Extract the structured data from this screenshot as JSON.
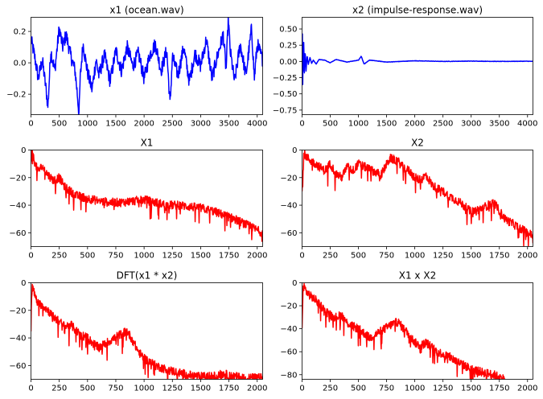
{
  "chart_data": [
    {
      "type": "line",
      "title": "x1 (ocean.wav)",
      "color": "#0000ff",
      "xlim": [
        0,
        4096
      ],
      "ylim": [
        -0.33,
        0.29
      ],
      "xticks": [
        0,
        500,
        1000,
        1500,
        2000,
        2500,
        3000,
        3500,
        4000
      ],
      "yticks": [
        -0.2,
        0.0,
        0.2
      ],
      "ytick_labels": [
        "−0.2",
        "0.0",
        "0.2"
      ],
      "series": [
        {
          "x": [
            0,
            60,
            130,
            200,
            270,
            300,
            350,
            420,
            500,
            560,
            620,
            700,
            780,
            820,
            850,
            870,
            920,
            1000,
            1080,
            1150,
            1200,
            1300,
            1400,
            1500,
            1600,
            1700,
            1800,
            1900,
            2000,
            2100,
            2200,
            2300,
            2400,
            2460,
            2500,
            2600,
            2700,
            2800,
            2900,
            3000,
            3100,
            3200,
            3300,
            3400,
            3450,
            3490,
            3520,
            3600,
            3700,
            3800,
            3900,
            3950,
            4000,
            4096
          ],
          "values": [
            0.15,
            0.05,
            -0.1,
            0.02,
            -0.18,
            -0.28,
            0.08,
            -0.05,
            0.22,
            0.1,
            0.18,
            0.05,
            -0.05,
            -0.2,
            -0.33,
            -0.1,
            0.12,
            -0.06,
            -0.17,
            0.02,
            -0.08,
            0.05,
            -0.12,
            0.08,
            -0.05,
            0.1,
            -0.02,
            0.06,
            -0.1,
            0.05,
            0.12,
            -0.05,
            0.08,
            -0.27,
            0.04,
            -0.08,
            0.1,
            -0.12,
            0.06,
            -0.02,
            0.15,
            -0.1,
            0.05,
            0.18,
            -0.05,
            0.29,
            0.08,
            -0.12,
            0.12,
            -0.08,
            0.22,
            -0.1,
            0.12,
            0.02
          ]
        }
      ]
    },
    {
      "type": "line",
      "title": "x2 (impulse-response.wav)",
      "color": "#0000ff",
      "xlim": [
        0,
        4096
      ],
      "ylim": [
        -0.82,
        0.68
      ],
      "xticks": [
        0,
        500,
        1000,
        1500,
        2000,
        2500,
        3000,
        3500,
        4000
      ],
      "yticks": [
        -0.75,
        -0.5,
        -0.25,
        0.0,
        0.25,
        0.5
      ],
      "ytick_labels": [
        "−0.75",
        "−0.50",
        "−0.25",
        "0.00",
        "0.25",
        "0.50"
      ],
      "series": [
        {
          "x": [
            0,
            5,
            10,
            15,
            20,
            30,
            40,
            55,
            70,
            90,
            110,
            140,
            170,
            200,
            250,
            300,
            400,
            500,
            600,
            800,
            1000,
            1050,
            1100,
            1200,
            1500,
            2000,
            2500,
            3000,
            3500,
            4000,
            4096
          ],
          "values": [
            0.0,
            0.68,
            -0.82,
            0.55,
            -0.4,
            0.35,
            -0.2,
            0.18,
            -0.15,
            0.1,
            -0.05,
            0.06,
            -0.03,
            0.02,
            -0.04,
            0.03,
            0.02,
            -0.02,
            0.03,
            -0.01,
            0.02,
            0.08,
            -0.04,
            0.02,
            -0.01,
            0.01,
            0.0,
            0.005,
            0.0,
            0.003,
            0.0
          ]
        }
      ]
    },
    {
      "type": "line",
      "title": "X1",
      "color": "#ff0000",
      "xlim": [
        0,
        2048
      ],
      "ylim": [
        -70,
        0
      ],
      "xticks": [
        0,
        250,
        500,
        750,
        1000,
        1250,
        1500,
        1750,
        2000
      ],
      "yticks": [
        -60,
        -40,
        -20,
        0
      ],
      "ytick_labels": [
        "−60",
        "−40",
        "−20",
        "0"
      ],
      "series": [
        {
          "x": [
            0,
            10,
            30,
            60,
            100,
            150,
            200,
            250,
            300,
            350,
            400,
            500,
            600,
            700,
            800,
            900,
            1000,
            1100,
            1200,
            1300,
            1400,
            1500,
            1600,
            1700,
            1800,
            1900,
            2000,
            2048
          ],
          "values": [
            -12,
            -2,
            -8,
            -15,
            -12,
            -18,
            -22,
            -20,
            -27,
            -30,
            -33,
            -35,
            -37,
            -38,
            -38,
            -37,
            -36,
            -38,
            -40,
            -40,
            -41,
            -42,
            -44,
            -47,
            -50,
            -54,
            -58,
            -60
          ]
        }
      ]
    },
    {
      "type": "line",
      "title": "X2",
      "color": "#ff0000",
      "xlim": [
        0,
        2048
      ],
      "ylim": [
        -70,
        0
      ],
      "xticks": [
        0,
        250,
        500,
        750,
        1000,
        1250,
        1500,
        1750,
        2000
      ],
      "yticks": [
        -60,
        -40,
        -20,
        0
      ],
      "ytick_labels": [
        "−60",
        "−40",
        "−20",
        "0"
      ],
      "series": [
        {
          "x": [
            0,
            15,
            40,
            80,
            120,
            150,
            200,
            250,
            300,
            350,
            400,
            450,
            500,
            600,
            700,
            780,
            850,
            900,
            950,
            1000,
            1050,
            1100,
            1150,
            1200,
            1250,
            1300,
            1400,
            1500,
            1600,
            1700,
            1800,
            1900,
            2000,
            2048
          ],
          "values": [
            -30,
            -2,
            -5,
            -8,
            -10,
            -12,
            -15,
            -10,
            -17,
            -20,
            -12,
            -15,
            -10,
            -14,
            -18,
            -6,
            -8,
            -13,
            -15,
            -20,
            -22,
            -18,
            -25,
            -28,
            -30,
            -33,
            -38,
            -45,
            -42,
            -38,
            -50,
            -55,
            -60,
            -62
          ]
        }
      ]
    },
    {
      "type": "line",
      "title": "DFT(x1 * x2)",
      "color": "#ff0000",
      "xlim": [
        0,
        2048
      ],
      "ylim": [
        -70,
        0
      ],
      "xticks": [
        0,
        250,
        500,
        750,
        1000,
        1250,
        1500,
        1750,
        2000
      ],
      "yticks": [
        -60,
        -40,
        -20,
        0
      ],
      "ytick_labels": [
        "−60",
        "−40",
        "−20",
        "0"
      ],
      "series": [
        {
          "x": [
            0,
            10,
            30,
            60,
            100,
            150,
            200,
            250,
            300,
            350,
            400,
            450,
            500,
            550,
            600,
            700,
            800,
            850,
            900,
            950,
            1000,
            1050,
            1100,
            1200,
            1300,
            1400,
            1500,
            1600,
            1700,
            1800,
            1900,
            2000,
            2048
          ],
          "values": [
            -28,
            -2,
            -8,
            -15,
            -16,
            -20,
            -25,
            -28,
            -32,
            -30,
            -35,
            -38,
            -40,
            -44,
            -47,
            -42,
            -37,
            -35,
            -42,
            -50,
            -55,
            -57,
            -60,
            -63,
            -65,
            -67,
            -68,
            -68,
            -66,
            -68,
            -69,
            -69,
            -69
          ]
        }
      ]
    },
    {
      "type": "line",
      "title": "X1 x X2",
      "color": "#ff0000",
      "xlim": [
        0,
        2048
      ],
      "ylim": [
        -84,
        0
      ],
      "xticks": [
        0,
        250,
        500,
        750,
        1000,
        1250,
        1500,
        1750,
        2000
      ],
      "yticks": [
        -80,
        -60,
        -40,
        -20,
        0
      ],
      "ytick_labels": [
        "−80",
        "−60",
        "−40",
        "−20",
        "0"
      ],
      "series": [
        {
          "x": [
            0,
            10,
            40,
            80,
            120,
            150,
            200,
            250,
            300,
            350,
            400,
            450,
            500,
            550,
            600,
            700,
            800,
            850,
            900,
            950,
            1000,
            1050,
            1100,
            1200,
            1300,
            1400,
            1500,
            1600,
            1700,
            1750,
            1800
          ],
          "values": [
            -40,
            -2,
            -8,
            -12,
            -15,
            -18,
            -24,
            -28,
            -30,
            -28,
            -35,
            -38,
            -40,
            -44,
            -48,
            -42,
            -36,
            -34,
            -40,
            -45,
            -52,
            -55,
            -52,
            -60,
            -64,
            -70,
            -75,
            -78,
            -80,
            -82,
            -84
          ]
        }
      ]
    }
  ]
}
